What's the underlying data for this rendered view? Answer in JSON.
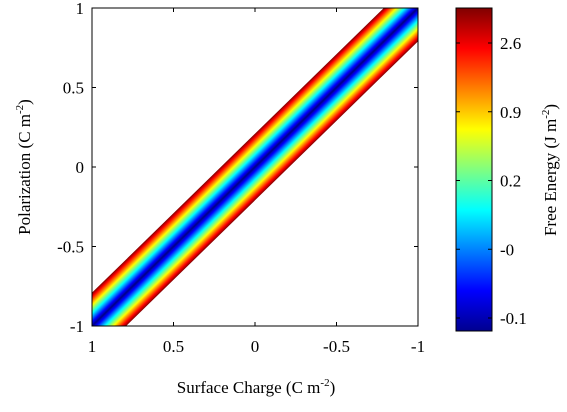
{
  "chart_data": {
    "type": "heatmap",
    "xlabel": "Surface Charge (C m",
    "xlabel_sup": "-2",
    "xlabel_end": ")",
    "ylabel": "Polarization (C m",
    "ylabel_sup": "-2",
    "ylabel_end": ")",
    "xlim": [
      1,
      -1
    ],
    "ylim": [
      -1,
      1
    ],
    "x_ticks": [
      "1",
      "0.5",
      "0",
      "-0.5",
      "-1"
    ],
    "x_tick_values": [
      1,
      0.5,
      0,
      -0.5,
      -1
    ],
    "y_ticks": [
      "-1",
      "-0.5",
      "0",
      "0.5",
      "1"
    ],
    "y_tick_values": [
      -1,
      -0.5,
      0,
      0.5,
      1
    ],
    "ridge": {
      "description_points": [
        [
          1,
          -1
        ],
        [
          -1,
          1
        ]
      ],
      "min_free_energy_at": "P = -sigma",
      "band_halfwidth": 0.15
    },
    "colorbar": {
      "label": "Free Energy (J m",
      "label_sup": "-2",
      "label_end": ")",
      "ticks": [
        "2.6",
        "0.9",
        "0.2",
        "-0",
        "-0.1"
      ],
      "colormap": [
        "#00008f",
        "#0000ff",
        "#0080ff",
        "#00ffff",
        "#80ff80",
        "#ffff00",
        "#ff8000",
        "#ff0000",
        "#800000"
      ]
    }
  }
}
